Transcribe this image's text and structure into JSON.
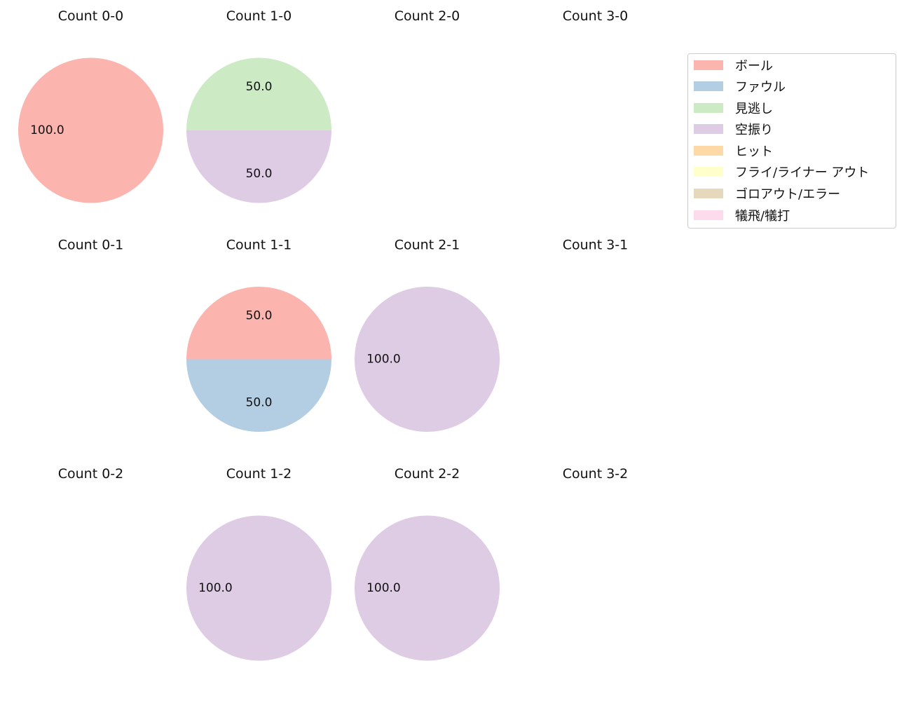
{
  "chart_data": {
    "type": "pie",
    "categories": [
      "ボール",
      "ファウル",
      "見逃し",
      "空振り",
      "ヒット",
      "フライ/ライナー アウト",
      "ゴロアウト/エラー",
      "犠飛/犠打"
    ],
    "colors": [
      "#fbb4ae",
      "#b3cde3",
      "#ccebc5",
      "#decbe4",
      "#fed9a6",
      "#ffffcc",
      "#e5d8bd",
      "#fddaec"
    ],
    "legend_position": "upper-right",
    "panels": [
      {
        "title": "Count 0-0",
        "values": [
          1,
          0,
          0,
          0,
          0,
          0,
          0,
          0
        ],
        "labels": [
          "100.0"
        ]
      },
      {
        "title": "Count 1-0",
        "values": [
          0,
          0,
          1,
          1,
          0,
          0,
          0,
          0
        ],
        "labels": [
          "50.0",
          "50.0"
        ]
      },
      {
        "title": "Count 2-0",
        "values": [],
        "labels": []
      },
      {
        "title": "Count 3-0",
        "values": [],
        "labels": []
      },
      {
        "title": "Count 0-1",
        "values": [],
        "labels": []
      },
      {
        "title": "Count 1-1",
        "values": [
          1,
          1,
          0,
          0,
          0,
          0,
          0,
          0
        ],
        "labels": [
          "50.0",
          "50.0"
        ]
      },
      {
        "title": "Count 2-1",
        "values": [
          0,
          0,
          0,
          1,
          0,
          0,
          0,
          0
        ],
        "labels": [
          "100.0"
        ]
      },
      {
        "title": "Count 3-1",
        "values": [],
        "labels": []
      },
      {
        "title": "Count 0-2",
        "values": [],
        "labels": []
      },
      {
        "title": "Count 1-2",
        "values": [
          0,
          0,
          0,
          1,
          0,
          0,
          0,
          0
        ],
        "labels": [
          "100.0"
        ]
      },
      {
        "title": "Count 2-2",
        "values": [
          0,
          0,
          0,
          1,
          0,
          0,
          0,
          0
        ],
        "labels": [
          "100.0"
        ]
      },
      {
        "title": "Count 3-2",
        "values": [],
        "labels": []
      }
    ]
  }
}
